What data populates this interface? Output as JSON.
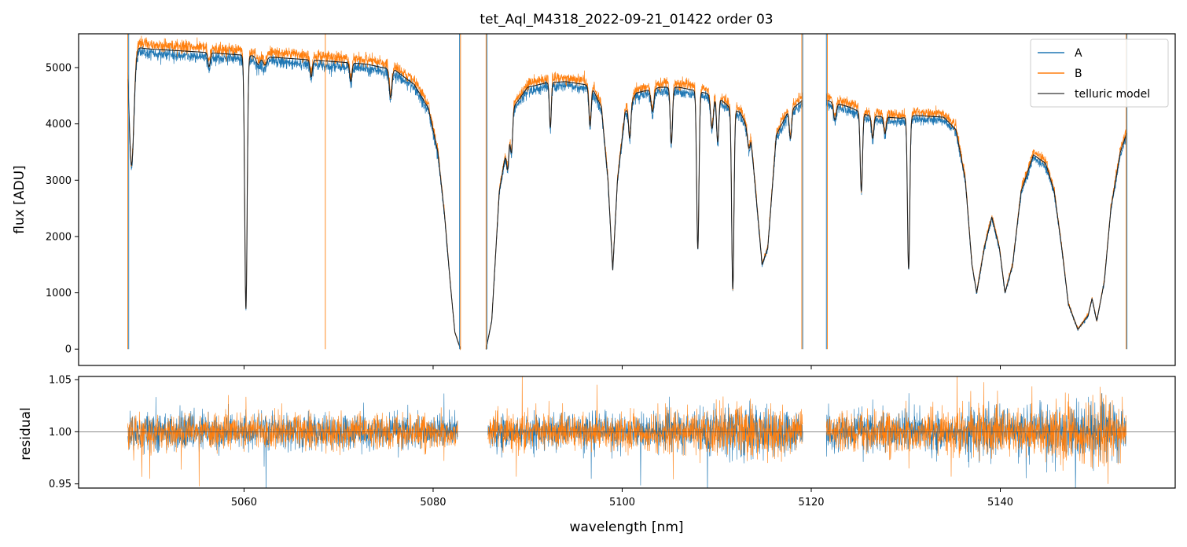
{
  "chart_data": [
    {
      "type": "line",
      "title": "tet_Aql_M4318_2022-09-21_01422  order 03",
      "ylabel": "flux [ADU]",
      "xlim": [
        5042.5,
        5158.5
      ],
      "ylim": [
        -290,
        5600
      ],
      "x_ticks": [
        5060,
        5080,
        5100,
        5120,
        5140
      ],
      "y_ticks": [
        0,
        1000,
        2000,
        3000,
        4000,
        5000
      ],
      "y_tick_labels": [
        "0",
        "1000",
        "2000",
        "3000",
        "4000",
        "5000"
      ],
      "legend": {
        "placement": "top-right",
        "entries": [
          "A",
          "B",
          "telluric model"
        ]
      },
      "series": [
        {
          "name": "A",
          "color": "#1f77b4"
        },
        {
          "name": "B",
          "color": "#ff7f0e"
        },
        {
          "name": "telluric model",
          "color": "#555555"
        }
      ],
      "gaps": [
        [
          5082.9,
          5085.6
        ],
        [
          5119.1,
          5121.6
        ]
      ],
      "continuum": [
        [
          5047.6,
          5380
        ],
        [
          5050,
          5330
        ],
        [
          5055,
          5280
        ],
        [
          5060,
          5220
        ],
        [
          5065,
          5160
        ],
        [
          5070,
          5100
        ],
        [
          5073,
          5060
        ],
        [
          5076,
          4950
        ],
        [
          5078,
          4700
        ],
        [
          5079.5,
          4280
        ],
        [
          5080.5,
          3500
        ],
        [
          5081.2,
          2400
        ],
        [
          5081.8,
          1200
        ],
        [
          5082.3,
          300
        ],
        [
          5082.9,
          0
        ],
        [
          5085.6,
          0
        ],
        [
          5086.2,
          500
        ],
        [
          5087.0,
          2800
        ],
        [
          5088.5,
          4300
        ],
        [
          5090,
          4650
        ],
        [
          5092,
          4730
        ],
        [
          5094,
          4750
        ],
        [
          5096,
          4700
        ],
        [
          5096.8,
          4650
        ],
        [
          5097.8,
          4300
        ],
        [
          5098.5,
          3000
        ],
        [
          5099,
          1400
        ],
        [
          5099.5,
          3000
        ],
        [
          5100.3,
          4200
        ],
        [
          5101.5,
          4550
        ],
        [
          5104,
          4650
        ],
        [
          5106,
          4650
        ],
        [
          5107.5,
          4600
        ],
        [
          5110,
          4500
        ],
        [
          5111.3,
          4300
        ],
        [
          5112.5,
          4200
        ],
        [
          5113.6,
          3800
        ],
        [
          5114.8,
          1500
        ],
        [
          5115.4,
          1800
        ],
        [
          5116.3,
          3800
        ],
        [
          5117.5,
          4200
        ],
        [
          5119.1,
          4420
        ],
        [
          5121.6,
          4420
        ],
        [
          5124,
          4300
        ],
        [
          5126,
          4150
        ],
        [
          5128,
          4120
        ],
        [
          5129.5,
          4100
        ],
        [
          5131,
          4150
        ],
        [
          5134,
          4120
        ],
        [
          5135.3,
          3900
        ],
        [
          5136.3,
          3000
        ],
        [
          5137.0,
          1500
        ],
        [
          5137.5,
          1000
        ],
        [
          5138.3,
          1800
        ],
        [
          5139.1,
          2350
        ],
        [
          5139.9,
          1800
        ],
        [
          5140.5,
          1000
        ],
        [
          5141.3,
          1500
        ],
        [
          5142.2,
          2800
        ],
        [
          5143.5,
          3450
        ],
        [
          5144.8,
          3300
        ],
        [
          5145.7,
          2800
        ],
        [
          5146.5,
          1800
        ],
        [
          5147.2,
          800
        ],
        [
          5148.2,
          350
        ],
        [
          5149.3,
          600
        ],
        [
          5149.7,
          900
        ],
        [
          5150.2,
          500
        ],
        [
          5151.0,
          1200
        ],
        [
          5151.7,
          2500
        ],
        [
          5152.7,
          3500
        ],
        [
          5153.4,
          3850
        ]
      ],
      "absorption_lines": [
        [
          5048.1,
          2100,
          0.25
        ],
        [
          5056.3,
          250,
          0.12
        ],
        [
          5060.2,
          4500,
          0.13
        ],
        [
          5061.5,
          150,
          0.2
        ],
        [
          5062.2,
          150,
          0.2
        ],
        [
          5067.1,
          300,
          0.12
        ],
        [
          5071.3,
          330,
          0.12
        ],
        [
          5075.5,
          500,
          0.14
        ],
        [
          5087.9,
          500,
          0.12
        ],
        [
          5088.3,
          600,
          0.12
        ],
        [
          5092.4,
          800,
          0.1
        ],
        [
          5096.6,
          700,
          0.12
        ],
        [
          5100.8,
          600,
          0.12
        ],
        [
          5103.2,
          400,
          0.15
        ],
        [
          5105.2,
          1000,
          0.12
        ],
        [
          5108.0,
          2800,
          0.12
        ],
        [
          5109.5,
          600,
          0.15
        ],
        [
          5110.1,
          800,
          0.12
        ],
        [
          5111.7,
          3200,
          0.12
        ],
        [
          5113.4,
          300,
          0.15
        ],
        [
          5117.8,
          500,
          0.12
        ],
        [
          5122.5,
          300,
          0.15
        ],
        [
          5125.3,
          1400,
          0.12
        ],
        [
          5126.5,
          400,
          0.12
        ],
        [
          5127.8,
          300,
          0.12
        ],
        [
          5130.3,
          2700,
          0.12
        ]
      ],
      "residual_level": 1.0,
      "floor_segments": [
        [
          5082.4,
          5082.9
        ],
        [
          5085.6,
          5086.0
        ],
        [
          5098.7,
          5099.3
        ],
        [
          5114.6,
          5115.3
        ],
        [
          5137.2,
          5138.0
        ],
        [
          5140.2,
          5141.0
        ],
        [
          5147.5,
          5149.2
        ]
      ]
    },
    {
      "type": "line",
      "xlabel": "wavelength [nm]",
      "ylabel": "residual",
      "xlim": [
        5042.5,
        5158.5
      ],
      "ylim": [
        0.946,
        1.053
      ],
      "x_ticks": [
        5060,
        5080,
        5100,
        5120,
        5140
      ],
      "x_tick_labels": [
        "5060",
        "5080",
        "5100",
        "5120",
        "5140"
      ],
      "y_ticks": [
        0.95,
        1.0,
        1.05
      ],
      "y_tick_labels": [
        "0.95",
        "1.00",
        "1.05"
      ],
      "reference_line": 1.0,
      "segments": [
        [
          5047.7,
          5082.6
        ],
        [
          5085.8,
          5119.1
        ],
        [
          5121.6,
          5153.3
        ]
      ],
      "noise": [
        [
          5047.7,
          0.012
        ],
        [
          5060,
          0.011
        ],
        [
          5080,
          0.011
        ],
        [
          5086,
          0.011
        ],
        [
          5100,
          0.011
        ],
        [
          5108,
          0.013
        ],
        [
          5112,
          0.017
        ],
        [
          5115,
          0.016
        ],
        [
          5119,
          0.012
        ],
        [
          5122,
          0.012
        ],
        [
          5130,
          0.014
        ],
        [
          5135,
          0.012
        ],
        [
          5138,
          0.018
        ],
        [
          5142,
          0.013
        ],
        [
          5146,
          0.018
        ],
        [
          5150,
          0.02
        ],
        [
          5153.3,
          0.016
        ]
      ]
    }
  ]
}
